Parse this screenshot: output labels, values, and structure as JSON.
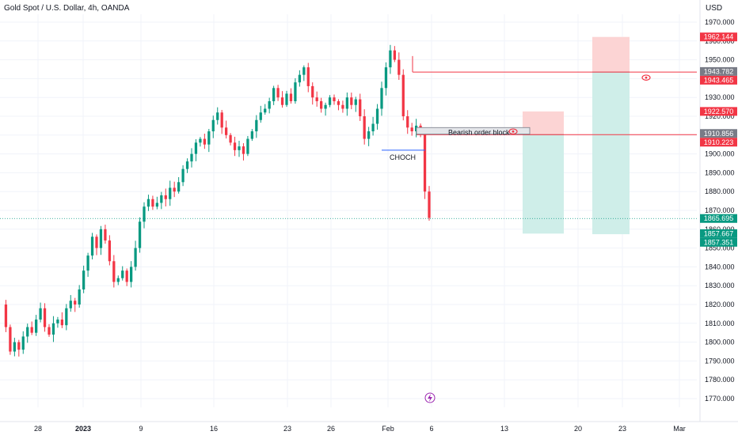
{
  "header": {
    "symbol_title": "Gold Spot / U.S. Dollar, 4h, OANDA",
    "currency": "USD"
  },
  "colors": {
    "up": "#089981",
    "down": "#f23645",
    "grid": "#f0f3fa",
    "text": "#131722",
    "red_line": "#f23645",
    "blue_line": "#2962ff",
    "tp_fill": "#cfeee9",
    "sl_fill": "#fcd4d4",
    "tag_red": "#f23645",
    "tag_gray": "#787b86",
    "tag_green": "#089981",
    "ob_fill": "#e4e6ea",
    "ob_border": "#787b86",
    "lightning": "#9c27b0"
  },
  "chart_data": {
    "type": "candlestick",
    "title": "Gold Spot / U.S. Dollar, 4h, OANDA",
    "ylabel": "USD",
    "ylim": [
      1765,
      1975
    ],
    "y_ticks": [
      "1770.000",
      "1780.000",
      "1790.000",
      "1800.000",
      "1810.000",
      "1820.000",
      "1830.000",
      "1840.000",
      "1850.000",
      "1860.000",
      "1870.000",
      "1880.000",
      "1890.000",
      "1900.000",
      "1910.000",
      "1920.000",
      "1930.000",
      "1940.000",
      "1950.000",
      "1960.000",
      "1970.000"
    ],
    "x_ticks": [
      {
        "label": "28",
        "bold": false
      },
      {
        "label": "2023",
        "bold": true
      },
      {
        "label": "9",
        "bold": false
      },
      {
        "label": "16",
        "bold": false
      },
      {
        "label": "23",
        "bold": false
      },
      {
        "label": "26",
        "bold": false
      },
      {
        "label": "Feb",
        "bold": false
      },
      {
        "label": "6",
        "bold": false
      },
      {
        "label": "13",
        "bold": false
      },
      {
        "label": "20",
        "bold": false
      },
      {
        "label": "23",
        "bold": false
      },
      {
        "label": "Mar",
        "bold": false
      }
    ],
    "price_series": [
      1820,
      1808,
      1795,
      1800,
      1796,
      1803,
      1808,
      1805,
      1812,
      1818,
      1808,
      1804,
      1810,
      1812,
      1809,
      1818,
      1822,
      1820,
      1828,
      1838,
      1846,
      1856,
      1850,
      1860,
      1854,
      1843,
      1832,
      1834,
      1838,
      1832,
      1840,
      1850,
      1864,
      1872,
      1876,
      1872,
      1874,
      1878,
      1876,
      1882,
      1880,
      1885,
      1892,
      1896,
      1900,
      1906,
      1908,
      1905,
      1912,
      1918,
      1922,
      1914,
      1910,
      1906,
      1902,
      1904,
      1900,
      1908,
      1912,
      1918,
      1922,
      1924,
      1928,
      1935,
      1930,
      1926,
      1932,
      1928,
      1938,
      1942,
      1946,
      1936,
      1930,
      1928,
      1924,
      1926,
      1930,
      1928,
      1926,
      1924,
      1930,
      1926,
      1929,
      1920,
      1908,
      1912,
      1916,
      1924,
      1935,
      1946,
      1955,
      1950,
      1942,
      1920,
      1914,
      1912,
      1915,
      1911,
      1880,
      1866
    ],
    "levels": [
      {
        "label": "1962.144",
        "value": 1962.144,
        "color": "tag_red"
      },
      {
        "label": "1943.782",
        "value": 1943.782,
        "color": "tag_gray"
      },
      {
        "label": "1943.465",
        "value": 1943.465,
        "color": "tag_red"
      },
      {
        "label": "1922.570",
        "value": 1922.57,
        "color": "tag_red"
      },
      {
        "label": "1910.856",
        "value": 1910.856,
        "color": "tag_gray"
      },
      {
        "label": "1910.223",
        "value": 1910.223,
        "color": "tag_red"
      },
      {
        "label": "1865.695",
        "value": 1865.695,
        "color": "tag_green"
      },
      {
        "label": "1857.667",
        "value": 1857.667,
        "color": "tag_green"
      },
      {
        "label": "1857.351",
        "value": 1857.351,
        "color": "tag_green"
      }
    ],
    "annotations": {
      "order_block_label": "Bearish order block",
      "choch_label": "CHOCH",
      "choch_level": 1902,
      "order_block_top": 1914,
      "order_block_bottom": 1910.5,
      "trade_1": {
        "sl_top": 1922.57,
        "entry": 1910.223,
        "tp": 1857.667
      },
      "trade_2": {
        "sl_top": 1962.144,
        "entry": 1943.465,
        "tp": 1857.351
      },
      "current_price": 1865.695
    }
  }
}
